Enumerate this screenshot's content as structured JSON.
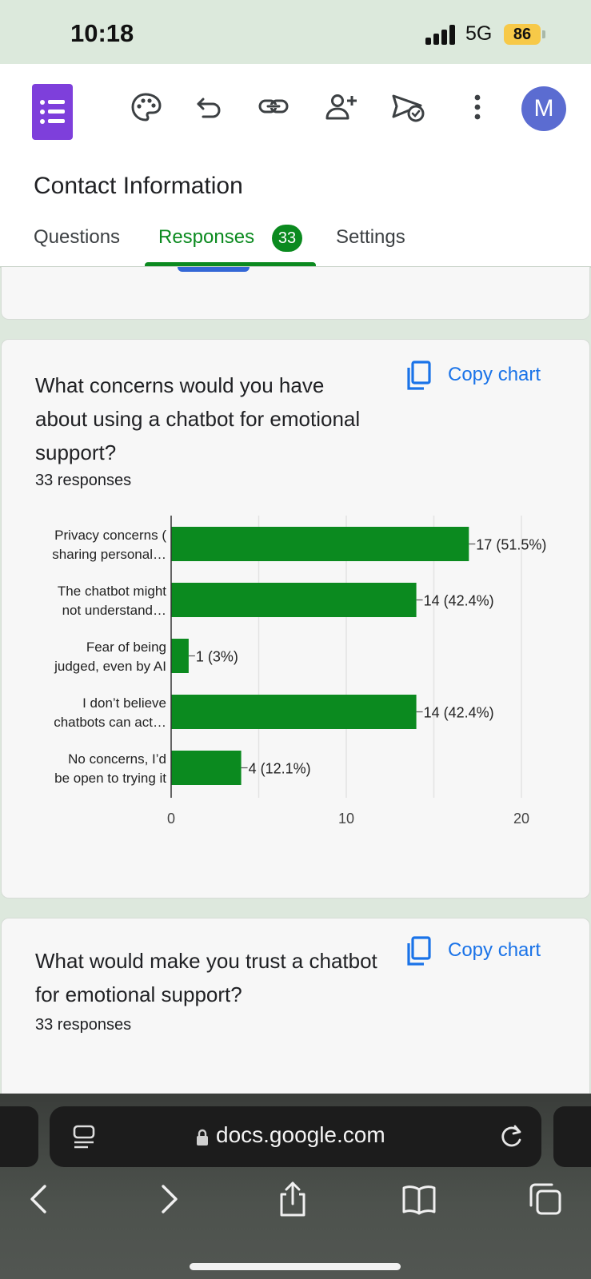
{
  "status": {
    "time": "10:18",
    "network": "5G",
    "battery": "86"
  },
  "header": {
    "title": "Contact Information",
    "avatar_initial": "M",
    "tabs": [
      {
        "label": "Questions"
      },
      {
        "label": "Responses",
        "badge": "33"
      },
      {
        "label": "Settings"
      }
    ]
  },
  "cards": [
    {
      "question": "What concerns would you have about using a chatbot for emotional support?",
      "responses": "33 responses",
      "copy_label": "Copy chart"
    },
    {
      "question": "What would make you trust a chatbot for emotional support?",
      "responses": "33 responses",
      "copy_label": "Copy chart"
    }
  ],
  "chart_data": {
    "type": "bar",
    "orientation": "horizontal",
    "categories": [
      [
        "Privacy concerns (",
        "sharing personal…"
      ],
      [
        "The chatbot might",
        "not understand…"
      ],
      [
        "Fear of being",
        "judged, even by AI"
      ],
      [
        "I don’t believe",
        "chatbots can act…"
      ],
      [
        "No concerns, I’d",
        "be open to trying it"
      ]
    ],
    "values": [
      17,
      14,
      1,
      14,
      4
    ],
    "data_labels": [
      "17 (51.5%)",
      "14 (42.4%)",
      "1 (3%)",
      "14 (42.4%)",
      "4 (12.1%)"
    ],
    "xlim": [
      0,
      20
    ],
    "ticks": [
      "0",
      "10",
      "20"
    ],
    "grid": true,
    "color": "#0b8a1f"
  },
  "browser": {
    "url": "docs.google.com"
  },
  "colors": {
    "accent": "#0b8a1f",
    "link": "#1a73e8",
    "forms_purple": "#7e3fdb"
  }
}
